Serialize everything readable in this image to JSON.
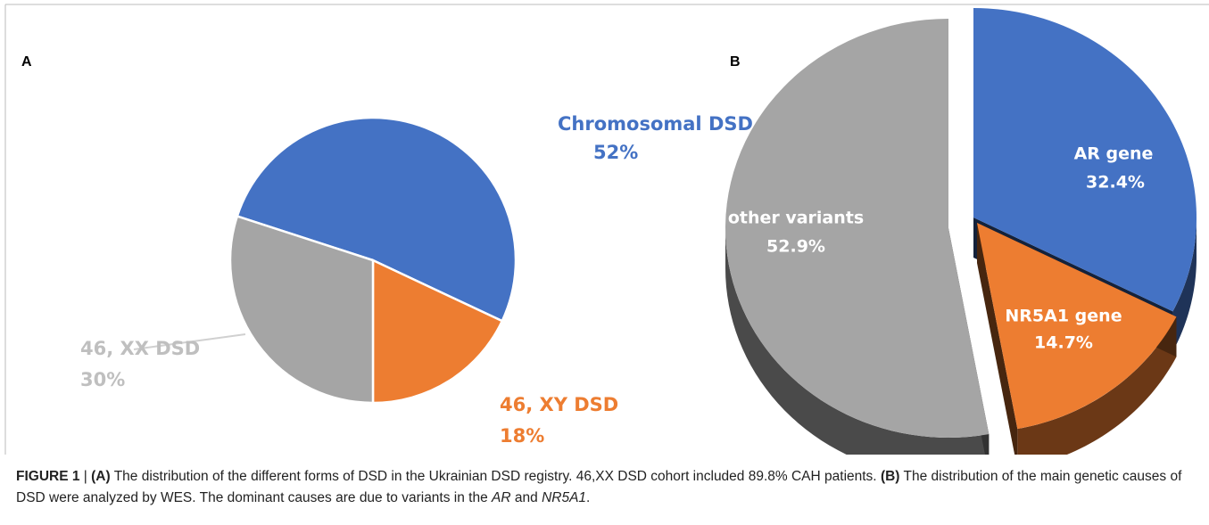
{
  "chart_data": [
    {
      "type": "pie",
      "panel": "A",
      "categories": [
        "Chromosomal DSD",
        "46, XY DSD",
        "46, XX DSD"
      ],
      "values": [
        52,
        18,
        30
      ],
      "value_labels": [
        "52%",
        "18%",
        "30%"
      ],
      "colors": [
        "#4472c4",
        "#ed7d31",
        "#a5a5a5"
      ]
    },
    {
      "type": "pie3d",
      "panel": "B",
      "categories": [
        "AR gene",
        "NR5A1 gene",
        "other variants"
      ],
      "values": [
        32.4,
        14.7,
        52.9
      ],
      "value_labels": [
        "32.4%",
        "14.7%",
        "52.9%"
      ],
      "colors": [
        "#4472c4",
        "#ed7d31",
        "#a5a5a5"
      ]
    }
  ],
  "caption": {
    "figure": "FIGURE 1",
    "separator": "|",
    "part_a_label": "(A)",
    "part_a_text": "The distribution of the different forms of DSD in the Ukrainian DSD registry. 46,XX DSD cohort included 89.8% CAH patients.",
    "part_b_label": "(B)",
    "part_b_text": "The distribution of the main genetic causes of DSD were analyzed by WES. The dominant causes are due to variants in the",
    "gene_1": "AR",
    "conjunction": "and",
    "gene_2": "NR5A1",
    "end": "."
  }
}
